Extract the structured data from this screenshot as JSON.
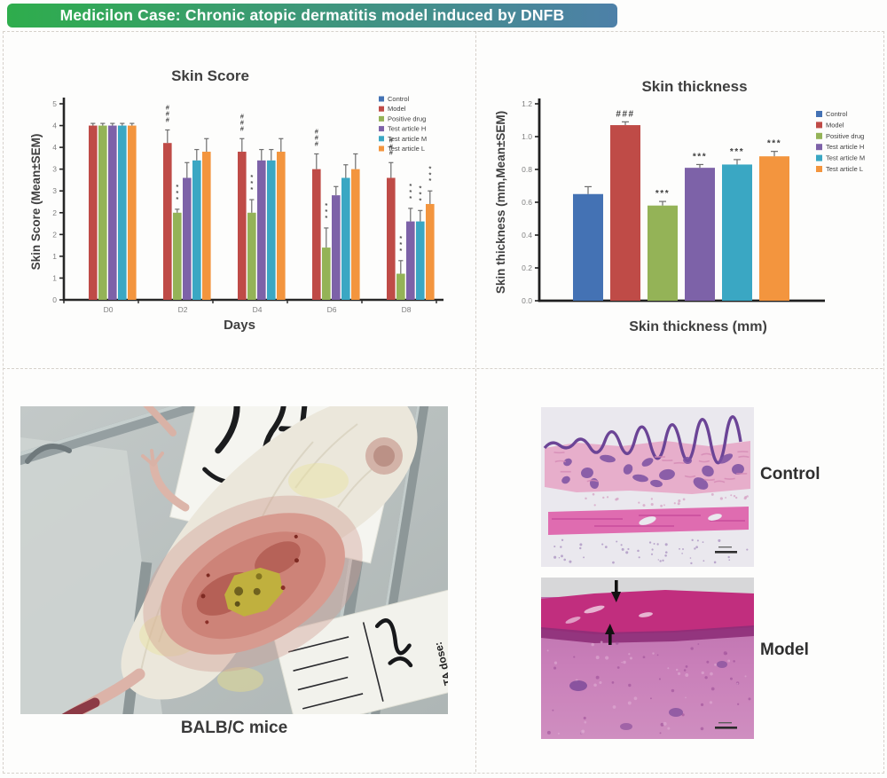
{
  "header": {
    "title": "Medicilon Case: Chronic atopic dermatitis model induced by DNFB",
    "gradient": [
      "#2ead4c",
      "#4d80a8"
    ]
  },
  "chart_data": [
    {
      "type": "bar-grouped",
      "title": "Skin Score",
      "ylabel": "Skin Score (Mean±SEM)",
      "xlabel": "Days",
      "categories": [
        "D0",
        "D2",
        "D4",
        "D6",
        "D8"
      ],
      "ylim": [
        0,
        4.5
      ],
      "ytick_step": 0.5,
      "ytick_labels": [
        "0",
        "1",
        "1",
        "2",
        "2",
        "3",
        "3",
        "4",
        "4",
        "5"
      ],
      "legend_position": "top-right",
      "grid": false,
      "series": [
        {
          "name": "Control",
          "color": "#4472b4",
          "values": [
            0,
            0,
            0,
            0,
            0
          ],
          "errors": [
            0,
            0,
            0,
            0,
            0
          ],
          "sig": [
            "",
            "",
            "",
            "",
            ""
          ]
        },
        {
          "name": "Model",
          "color": "#bf4b47",
          "values": [
            4.0,
            3.6,
            3.4,
            3.0,
            2.8
          ],
          "errors": [
            0.05,
            0.3,
            0.3,
            0.35,
            0.35
          ],
          "sig": [
            "",
            "###",
            "###",
            "###",
            "###"
          ]
        },
        {
          "name": "Positive drug",
          "color": "#94b357",
          "values": [
            4.0,
            2.0,
            2.0,
            1.2,
            0.6
          ],
          "errors": [
            0.05,
            0.08,
            0.3,
            0.45,
            0.3
          ],
          "sig": [
            "",
            "***",
            "***",
            "***",
            "***"
          ]
        },
        {
          "name": "Test article H",
          "color": "#7d62a8",
          "values": [
            4.0,
            2.8,
            3.2,
            2.4,
            1.8
          ],
          "errors": [
            0.05,
            0.35,
            0.25,
            0.2,
            0.3
          ],
          "sig": [
            "",
            "",
            "",
            "",
            "***"
          ]
        },
        {
          "name": "Test article M",
          "color": "#3aa7c3",
          "values": [
            4.0,
            3.2,
            3.2,
            2.8,
            1.8
          ],
          "errors": [
            0.05,
            0.25,
            0.25,
            0.3,
            0.25
          ],
          "sig": [
            "",
            "",
            "",
            "",
            "***"
          ]
        },
        {
          "name": "Test article L",
          "color": "#f3953e",
          "values": [
            4.0,
            3.4,
            3.4,
            3.0,
            2.2
          ],
          "errors": [
            0.05,
            0.3,
            0.3,
            0.35,
            0.3
          ],
          "sig": [
            "",
            "",
            "",
            "",
            "***"
          ]
        }
      ]
    },
    {
      "type": "bar",
      "title": "Skin thickness",
      "ylabel": "Skin thickness (mm,Mean±SEM)",
      "xlabel": "Skin thickness (mm)",
      "categories": [
        "Control",
        "Model",
        "Positive drug",
        "Test article H",
        "Test article M",
        "Test article L"
      ],
      "colors": [
        "#4472b4",
        "#bf4b47",
        "#94b357",
        "#7d62a8",
        "#3aa7c3",
        "#f3953e"
      ],
      "values": [
        0.65,
        1.07,
        0.58,
        0.81,
        0.83,
        0.88
      ],
      "errors": [
        0.045,
        0.02,
        0.025,
        0.02,
        0.03,
        0.03
      ],
      "sig": [
        "",
        "###",
        "***",
        "***",
        "***",
        "***"
      ],
      "ylim": [
        0,
        1.2
      ],
      "ytick_labels": [
        "0.0",
        "0.2",
        "0.4",
        "0.6",
        "0.8",
        "1.0",
        "1.2"
      ],
      "legend_position": "right",
      "category_labels_hidden": true,
      "grid": false
    }
  ],
  "photo_panel": {
    "caption": "BALB/C mice",
    "card_text": "TA dose:"
  },
  "histology_panel": {
    "labels": [
      "Control",
      "Model"
    ]
  }
}
